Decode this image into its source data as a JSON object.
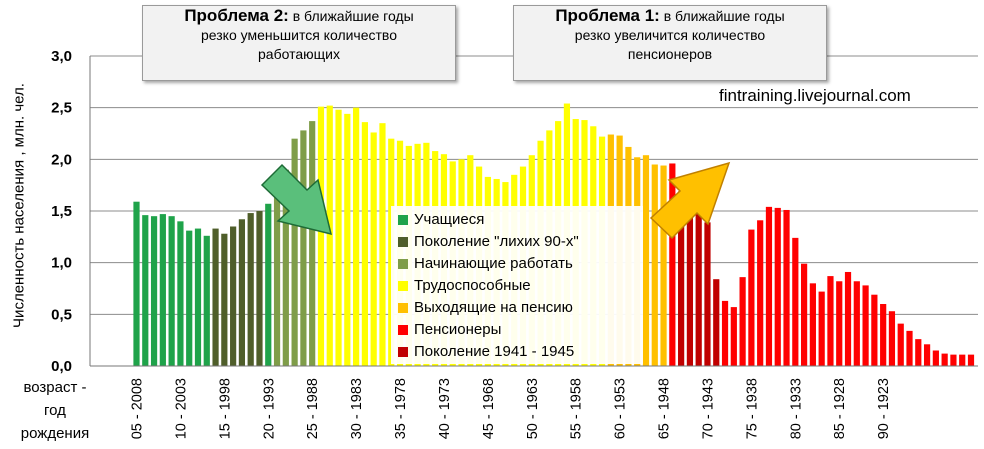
{
  "problem2": {
    "bold": "Проблема 2:",
    "line1": " в ближайшие годы",
    "line2": "резко уменьшится  количество",
    "line3": "работающих"
  },
  "problem1": {
    "bold": "Проблема 1:",
    "line1": " в ближайшие годы",
    "line2": "резко увеличится  количество",
    "line3": "пенсионеров"
  },
  "watermark": "fintraining.livejournal.com",
  "chart_data": {
    "type": "bar",
    "ylabel": "Численность населения , млн. чел.",
    "xcaption": "возраст -\nгод\nрождения",
    "ylim": [
      0,
      3.0
    ],
    "yticks": [
      "0,0",
      "0,5",
      "1,0",
      "1,5",
      "2,0",
      "2,5",
      "3,0"
    ],
    "grid": true,
    "legend_position": "center",
    "xtick_labels": [
      "05 - 2008",
      "10 - 2003",
      "15 - 1998",
      "20 - 1993",
      "25 - 1988",
      "30 - 1983",
      "35 - 1978",
      "40 - 1973",
      "45 - 1968",
      "50 - 1963",
      "55 - 1958",
      "60 - 1953",
      "65 - 1948",
      "70 - 1943",
      "75 - 1938",
      "80 - 1933",
      "85 - 1928",
      "90 - 1923"
    ],
    "start_age": 5,
    "series": [
      {
        "name": "Учащиеся",
        "color": "#1fa34a",
        "ages": [
          5,
          21
        ]
      },
      {
        "name": "Поколение \"лихих 90-х\"",
        "color": "#4f5e2a",
        "ages": [
          14,
          19
        ]
      },
      {
        "name": "Начинающие работать",
        "color": "#7f9d49",
        "ages": [
          21,
          25
        ]
      },
      {
        "name": "Трудоспособные",
        "color": "#ffff00",
        "ages": [
          26,
          58
        ]
      },
      {
        "name": "Выходящие на пенсию",
        "color": "#ffc000",
        "ages": [
          59,
          65
        ]
      },
      {
        "name": "Пенсионеры",
        "color": "#ff0000",
        "ages": [
          66,
          100
        ]
      },
      {
        "name": "Поколение 1941 - 1945",
        "color": "#c00000",
        "ages": [
          67,
          71
        ]
      }
    ],
    "values": [
      1.59,
      1.46,
      1.45,
      1.47,
      1.45,
      1.4,
      1.31,
      1.33,
      1.26,
      1.33,
      1.28,
      1.35,
      1.42,
      1.48,
      1.5,
      1.57,
      1.71,
      1.9,
      2.2,
      2.28,
      2.37,
      2.51,
      2.52,
      2.48,
      2.44,
      2.5,
      2.36,
      2.26,
      2.35,
      2.2,
      2.18,
      2.13,
      2.15,
      2.16,
      2.08,
      2.05,
      1.98,
      2.0,
      2.04,
      1.93,
      1.83,
      1.81,
      1.78,
      1.85,
      1.93,
      2.04,
      2.18,
      2.28,
      2.37,
      2.54,
      2.39,
      2.38,
      2.32,
      2.22,
      2.24,
      2.23,
      2.12,
      2.02,
      2.04,
      1.95,
      1.94,
      1.96,
      1.69,
      1.6,
      1.5,
      1.39,
      0.84,
      0.63,
      0.57,
      0.86,
      1.32,
      1.41,
      1.54,
      1.53,
      1.51,
      1.24,
      0.99,
      0.8,
      0.72,
      0.87,
      0.82,
      0.91,
      0.82,
      0.78,
      0.69,
      0.6,
      0.53,
      0.41,
      0.34,
      0.26,
      0.21,
      0.15,
      0.12,
      0.11,
      0.11,
      0.11
    ]
  }
}
